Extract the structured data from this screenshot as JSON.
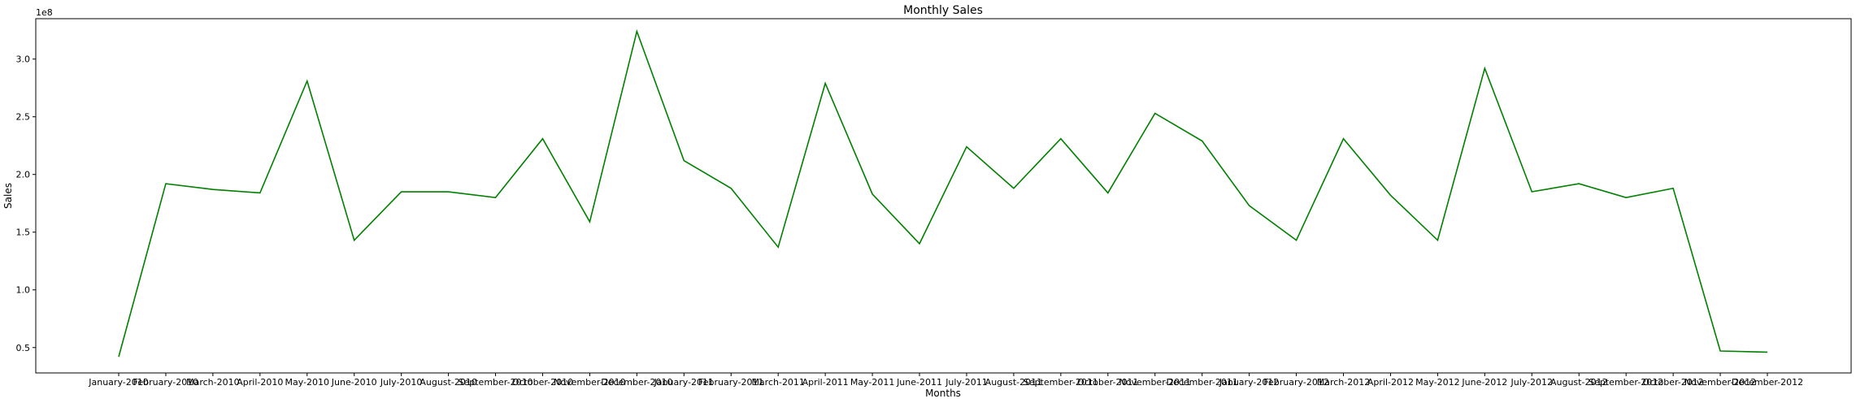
{
  "chart_data": {
    "type": "line",
    "title": "Monthly Sales",
    "xlabel": "Months",
    "ylabel": "Sales",
    "y_offset_label": "1e8",
    "line_color": "#008000",
    "grid": false,
    "ylim": [
      0.28,
      3.35
    ],
    "yticks": [
      0.5,
      1.0,
      1.5,
      2.0,
      2.5,
      3.0
    ],
    "ytick_labels": [
      "0.5",
      "1.0",
      "1.5",
      "2.0",
      "2.5",
      "3.0"
    ],
    "categories": [
      "January-2010",
      "February-2010",
      "March-2010",
      "April-2010",
      "May-2010",
      "June-2010",
      "July-2010",
      "August-2010",
      "September-2010",
      "October-2010",
      "November-2010",
      "December-2010",
      "January-2011",
      "February-2011",
      "March-2011",
      "April-2011",
      "May-2011",
      "June-2011",
      "July-2011",
      "August-2011",
      "September-2011",
      "October-2011",
      "November-2011",
      "December-2011",
      "January-2012",
      "February-2012",
      "March-2012",
      "April-2012",
      "May-2012",
      "June-2012",
      "July-2012",
      "August-2012",
      "September-2012",
      "October-2012",
      "November-2012",
      "December-2012"
    ],
    "values": [
      0.42,
      1.92,
      1.87,
      1.84,
      2.81,
      1.43,
      1.85,
      1.85,
      1.8,
      2.31,
      1.59,
      3.24,
      2.12,
      1.88,
      1.37,
      2.79,
      1.83,
      1.4,
      2.24,
      1.88,
      2.31,
      1.84,
      2.53,
      2.29,
      1.73,
      1.43,
      2.31,
      1.82,
      1.43,
      2.92,
      1.85,
      1.92,
      1.8,
      1.88,
      0.47,
      0.46
    ]
  }
}
